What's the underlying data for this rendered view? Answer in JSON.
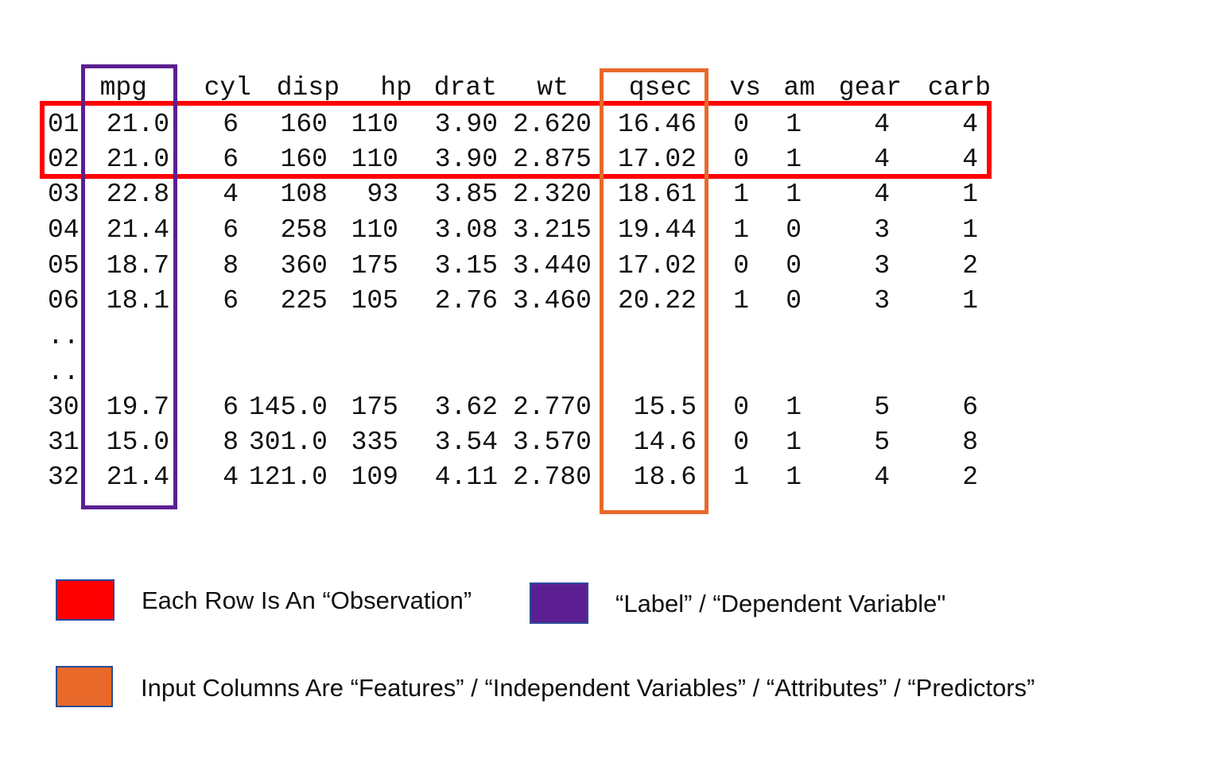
{
  "table": {
    "headers": [
      "mpg",
      "cyl",
      "disp",
      "hp",
      "drat",
      "wt",
      "qsec",
      "vs",
      "am",
      "gear",
      "carb"
    ],
    "rows": [
      {
        "id": "01",
        "cells": [
          "21.0",
          "6",
          "160",
          "110",
          "3.90",
          "2.620",
          "16.46",
          "0",
          "1",
          "4",
          "4"
        ]
      },
      {
        "id": "02",
        "cells": [
          "21.0",
          "6",
          "160",
          "110",
          "3.90",
          "2.875",
          "17.02",
          "0",
          "1",
          "4",
          "4"
        ]
      },
      {
        "id": "03",
        "cells": [
          "22.8",
          "4",
          "108",
          "93",
          "3.85",
          "2.320",
          "18.61",
          "1",
          "1",
          "4",
          "1"
        ]
      },
      {
        "id": "04",
        "cells": [
          "21.4",
          "6",
          "258",
          "110",
          "3.08",
          "3.215",
          "19.44",
          "1",
          "0",
          "3",
          "1"
        ]
      },
      {
        "id": "05",
        "cells": [
          "18.7",
          "8",
          "360",
          "175",
          "3.15",
          "3.440",
          "17.02",
          "0",
          "0",
          "3",
          "2"
        ]
      },
      {
        "id": "06",
        "cells": [
          "18.1",
          "6",
          "225",
          "105",
          "2.76",
          "3.460",
          "20.22",
          "1",
          "0",
          "3",
          "1"
        ]
      },
      {
        "id": "..",
        "cells": [
          "",
          "",
          "",
          "",
          "",
          "",
          "",
          "",
          "",
          "",
          ""
        ]
      },
      {
        "id": "..",
        "cells": [
          "",
          "",
          "",
          "",
          "",
          "",
          "",
          "",
          "",
          "",
          ""
        ]
      },
      {
        "id": "30",
        "cells": [
          "19.7",
          "6",
          "145.0",
          "175",
          "3.62",
          "2.770",
          "15.5",
          "0",
          "1",
          "5",
          "6"
        ]
      },
      {
        "id": "31",
        "cells": [
          "15.0",
          "8",
          "301.0",
          "335",
          "3.54",
          "3.570",
          "14.6",
          "0",
          "1",
          "5",
          "8"
        ]
      },
      {
        "id": "32",
        "cells": [
          "21.4",
          "4",
          "121.0",
          "109",
          "4.11",
          "2.780",
          "18.6",
          "1",
          "1",
          "4",
          "2"
        ]
      }
    ]
  },
  "highlights": {
    "observation_color": "#ff0000",
    "label_color": "#5b1f91",
    "features_color": "#e8692a"
  },
  "legend": {
    "observation": "Each Row Is An “Observation”",
    "label": "“Label” / “Dependent Variable\"",
    "features": "Input Columns Are “Features” / “Independent Variables” / “Attributes” / “Predictors”"
  }
}
